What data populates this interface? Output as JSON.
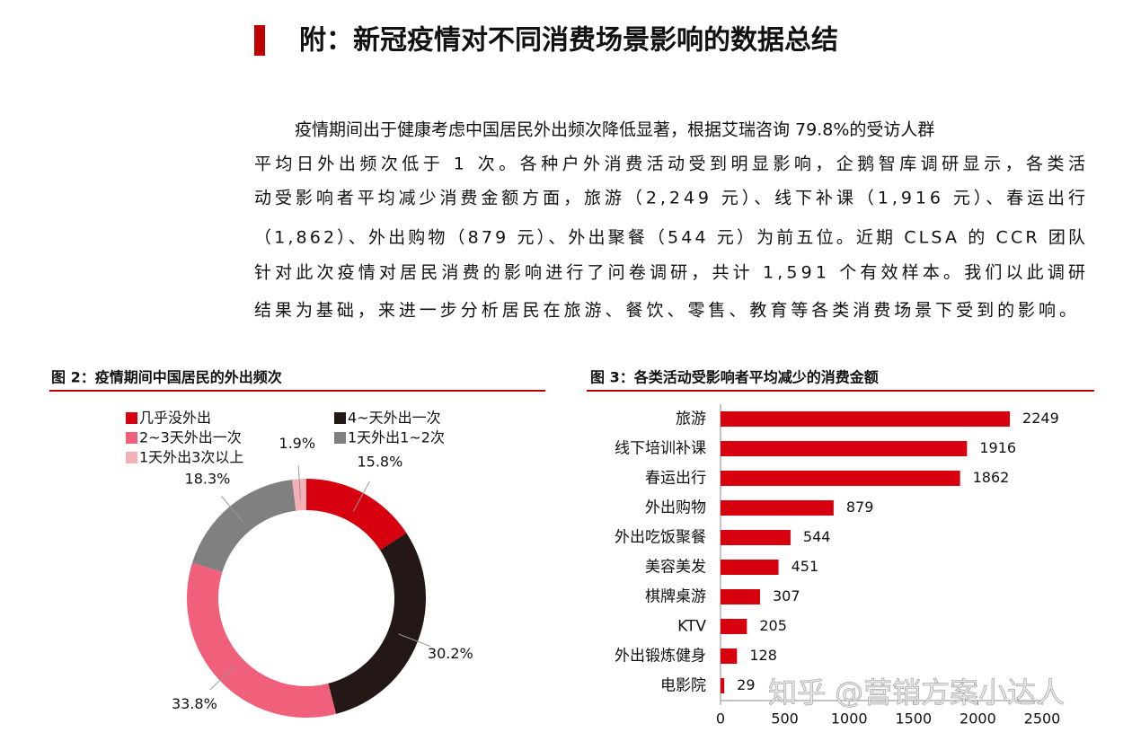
{
  "header": {
    "title": "附：新冠疫情对不同消费场景影响的数据总结"
  },
  "paragraph": {
    "lines": [
      "疫情期间出于健康考虑中国居民外出频次降低显著，根据艾瑞咨询 79.8%的受访人群",
      "平均日外出频次低于 1 次。各种户外消费活动受到明显影响，企鹅智库调研显示，各类活",
      "动受影响者平均减少消费金额方面，旅游（2,249 元）、线下补课（1,916 元）、春运出行",
      "（1,862）、外出购物（879 元）、外出聚餐（544 元）为前五位。近期 CLSA 的 CCR 团队",
      "针对此次疫情对居民消费的影响进行了问卷调研，共计 1,591 个有效样本。我们以此调研",
      "结果为基础，来进一步分析居民在旅游、餐饮、零售、教育等各类消费场景下受到的影响。"
    ]
  },
  "chart_data": [
    {
      "type": "pie",
      "title": "图 2：疫情期间中国居民的外出频次",
      "categories": [
        "几乎没外出",
        "4~天外出一次",
        "2~3天外出一次",
        "1天外出1~2次",
        "1天外出3次以上"
      ],
      "values": [
        15.8,
        30.2,
        33.8,
        18.3,
        1.9
      ],
      "value_labels": [
        "15.8%",
        "30.2%",
        "33.8%",
        "18.3%",
        "1.9%"
      ],
      "colors": [
        "#d7000f",
        "#231815",
        "#f0607a",
        "#808080",
        "#f4b0b5"
      ]
    },
    {
      "type": "barh",
      "title": "图 3：各类活动受影响者平均减少的消费金额",
      "categories": [
        "旅游",
        "线下培训补课",
        "春运出行",
        "外出购物",
        "外出吃饭聚餐",
        "美容美发",
        "棋牌桌游",
        "KTV",
        "外出锻炼健身",
        "电影院"
      ],
      "values": [
        2249,
        1916,
        1862,
        879,
        544,
        451,
        307,
        205,
        128,
        29
      ],
      "color": "#d7000f",
      "xlim": [
        0,
        2500
      ],
      "xticks": [
        0,
        500,
        1000,
        1500,
        2000,
        2500
      ]
    }
  ],
  "watermark": "知乎 @营销方案小达人"
}
